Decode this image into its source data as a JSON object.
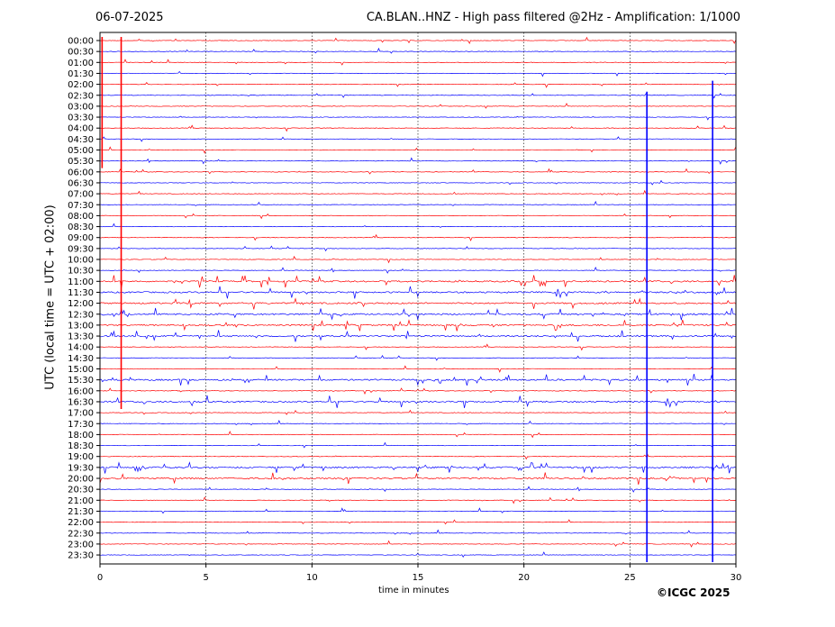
{
  "header": {
    "date": "06-07-2025",
    "title": "CA.BLAN..HNZ - High pass filtered @2Hz - Amplification: 1/1000"
  },
  "footer": {
    "copyright": "©ICGC 2025"
  },
  "chart_data": {
    "type": "line",
    "title": "CA.BLAN..HNZ - High pass filtered @2Hz - Amplification: 1/1000",
    "xlabel": "time in minutes",
    "ylabel": "UTC (local time = UTC + 02:00)",
    "xlim": [
      0,
      30
    ],
    "x_ticks": [
      "0",
      "5",
      "10",
      "15",
      "20",
      "25",
      "30"
    ],
    "y_ticks": [
      "00:00",
      "00:30",
      "01:00",
      "01:30",
      "02:00",
      "02:30",
      "03:00",
      "03:30",
      "04:00",
      "04:30",
      "05:00",
      "05:30",
      "06:00",
      "06:30",
      "07:00",
      "07:30",
      "08:00",
      "08:30",
      "09:00",
      "09:30",
      "10:00",
      "10:30",
      "11:00",
      "11:30",
      "12:00",
      "12:30",
      "13:00",
      "13:30",
      "14:00",
      "14:30",
      "15:00",
      "15:30",
      "16:00",
      "16:30",
      "17:00",
      "17:30",
      "18:00",
      "18:30",
      "19:00",
      "19:30",
      "20:00",
      "20:30",
      "21:00",
      "21:30",
      "22:00",
      "22:30",
      "23:00",
      "23:30"
    ],
    "series_colors": [
      "#ff0000",
      "#0000ff"
    ],
    "grid": "vertical dotted lines at 5-minute ticks",
    "events": [
      {
        "x": 0.1,
        "color": "#ff0000",
        "from_row": 0,
        "to_row": 11
      },
      {
        "x": 1.0,
        "color": "#ff0000",
        "from_row": 0,
        "to_row": 33
      },
      {
        "x": 25.8,
        "color": "#0000ff",
        "from_row": 5,
        "to_row": 47
      },
      {
        "x": 28.9,
        "color": "#0000ff",
        "from_row": 4,
        "to_row": 47
      }
    ],
    "noisy_rows": [
      22,
      23,
      24,
      25,
      26,
      27,
      31,
      33,
      39,
      40
    ]
  }
}
